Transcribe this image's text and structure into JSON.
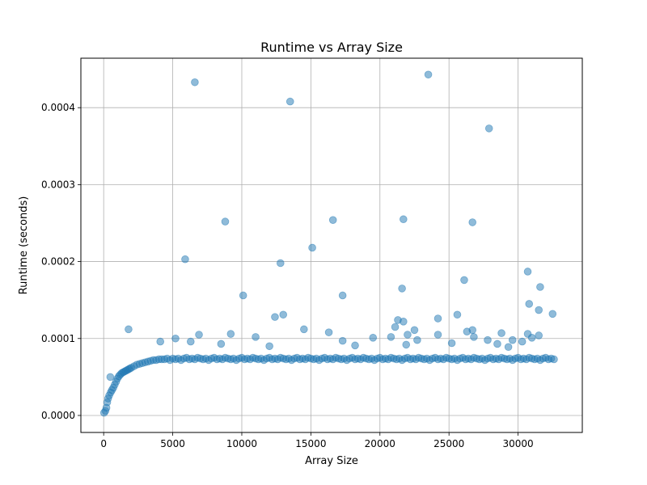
{
  "chart_data": {
    "type": "scatter",
    "title": "Runtime vs Array Size",
    "xlabel": "Array Size",
    "ylabel": "Runtime (seconds)",
    "xlim": [
      -1650,
      34650
    ],
    "ylim": [
      -2.21e-05,
      0.0004643
    ],
    "x_ticks": [
      0,
      5000,
      10000,
      15000,
      20000,
      25000,
      30000
    ],
    "x_tick_labels": [
      "0",
      "5000",
      "10000",
      "15000",
      "20000",
      "25000",
      "30000"
    ],
    "y_ticks": [
      0,
      0.0001,
      0.0002,
      0.0003,
      0.0004
    ],
    "y_tick_labels": [
      "0.0000",
      "0.0001",
      "0.0002",
      "0.0003",
      "0.0004"
    ],
    "grid": true,
    "legend": "none",
    "marker_color": "#1f77b4",
    "marker_alpha": 0.5,
    "series": [
      {
        "x": [
          32,
          128,
          200,
          256,
          320,
          400,
          480,
          512,
          600,
          700,
          800,
          900,
          1000,
          1100,
          1200,
          1300,
          1400,
          1500,
          1600,
          1700,
          1800,
          1900,
          2000,
          2200,
          2400,
          2600,
          2800,
          3000,
          3200,
          3400,
          3600,
          3800,
          4000,
          4200,
          4400,
          4600,
          4800,
          5000,
          5200,
          5400,
          5600,
          5800,
          6000,
          6200,
          6400,
          6600,
          6800,
          7000,
          7200,
          7400,
          7600,
          7800,
          8000,
          8200,
          8400,
          8600,
          8800,
          9000,
          9200,
          9400,
          9600,
          9800,
          10000,
          10200,
          10400,
          10600,
          10800,
          11000,
          11200,
          11400,
          11600,
          11800,
          12000,
          12200,
          12400,
          12600,
          12800,
          13000,
          13200,
          13400,
          13600,
          13800,
          14000,
          14200,
          14400,
          14600,
          14800,
          15000,
          15200,
          15400,
          15600,
          15800,
          16000,
          16200,
          16400,
          16600,
          16800,
          17000,
          17200,
          17400,
          17600,
          17800,
          18000,
          18200,
          18400,
          18600,
          18800,
          19000,
          19200,
          19400,
          19600,
          19800,
          20000,
          20200,
          20400,
          20600,
          20800,
          21000,
          21200,
          21400,
          21600,
          21800,
          22000,
          22200,
          22400,
          22600,
          22800,
          23000,
          23200,
          23400,
          23600,
          23800,
          24000,
          24200,
          24400,
          24600,
          24800,
          25000,
          25200,
          25400,
          25600,
          25800,
          26000,
          26200,
          26400,
          26600,
          26800,
          27000,
          27200,
          27400,
          27600,
          27800,
          28000,
          28200,
          28400,
          28600,
          28800,
          29000,
          29200,
          29400,
          29600,
          29800,
          30000,
          30200,
          30400,
          30600,
          30800,
          31000,
          31200,
          31400,
          31600,
          31800,
          32000,
          32200,
          32400,
          32600,
          6600,
          23500,
          13500,
          27900,
          8800,
          16600,
          21700,
          26700,
          5900,
          15100,
          12800,
          30700,
          26100,
          31600,
          21600,
          10100,
          17300,
          30800,
          31500,
          32500,
          12400,
          13000,
          25600,
          24200,
          1800,
          21100,
          21700,
          14500,
          26700,
          16300,
          4100,
          5200,
          6900,
          9200,
          11000,
          17300,
          19500,
          20800,
          21300,
          22000,
          22500,
          24200,
          25200,
          26300,
          27800,
          28500,
          28800,
          29600,
          30300,
          30700,
          31000,
          31500,
          6300,
          8500,
          12000,
          18200,
          21900,
          26800,
          29300,
          22700
        ],
        "y": [
          3.5e-06,
          6e-06,
          1e-05,
          1.7e-05,
          2.2e-05,
          2.6e-05,
          5e-05,
          3e-05,
          3.3e-05,
          3.6e-05,
          4e-05,
          4.4e-05,
          4.8e-05,
          5.1e-05,
          5.3e-05,
          5.5e-05,
          5.6e-05,
          5.7e-05,
          5.8e-05,
          5.9e-05,
          6e-05,
          6.1e-05,
          6.2e-05,
          6.4e-05,
          6.6e-05,
          6.7e-05,
          6.8e-05,
          6.9e-05,
          7e-05,
          7.1e-05,
          7.2e-05,
          7.2e-05,
          7.3e-05,
          7.3e-05,
          7.3e-05,
          7.4e-05,
          7.2e-05,
          7.4e-05,
          7.3e-05,
          7.4e-05,
          7.2e-05,
          7.4e-05,
          7.5e-05,
          7.3e-05,
          7.4e-05,
          7.3e-05,
          7.5e-05,
          7.4e-05,
          7.3e-05,
          7.4e-05,
          7.2e-05,
          7.4e-05,
          7.5e-05,
          7.3e-05,
          7.4e-05,
          7.3e-05,
          7.5e-05,
          7.4e-05,
          7.3e-05,
          7.4e-05,
          7.2e-05,
          7.4e-05,
          7.5e-05,
          7.3e-05,
          7.4e-05,
          7.3e-05,
          7.5e-05,
          7.4e-05,
          7.3e-05,
          7.4e-05,
          7.2e-05,
          7.4e-05,
          7.5e-05,
          7.3e-05,
          7.4e-05,
          7.3e-05,
          7.5e-05,
          7.4e-05,
          7.3e-05,
          7.4e-05,
          7.2e-05,
          7.4e-05,
          7.5e-05,
          7.3e-05,
          7.4e-05,
          7.3e-05,
          7.5e-05,
          7.4e-05,
          7.3e-05,
          7.4e-05,
          7.2e-05,
          7.4e-05,
          7.5e-05,
          7.3e-05,
          7.4e-05,
          7.3e-05,
          7.5e-05,
          7.4e-05,
          7.3e-05,
          7.4e-05,
          7.2e-05,
          7.4e-05,
          7.5e-05,
          7.3e-05,
          7.4e-05,
          7.3e-05,
          7.5e-05,
          7.4e-05,
          7.3e-05,
          7.4e-05,
          7.2e-05,
          7.4e-05,
          7.5e-05,
          7.3e-05,
          7.4e-05,
          7.3e-05,
          7.5e-05,
          7.4e-05,
          7.3e-05,
          7.4e-05,
          7.2e-05,
          7.4e-05,
          7.5e-05,
          7.3e-05,
          7.4e-05,
          7.3e-05,
          7.5e-05,
          7.4e-05,
          7.3e-05,
          7.4e-05,
          7.2e-05,
          7.4e-05,
          7.5e-05,
          7.3e-05,
          7.4e-05,
          7.3e-05,
          7.5e-05,
          7.4e-05,
          7.3e-05,
          7.4e-05,
          7.2e-05,
          7.4e-05,
          7.5e-05,
          7.3e-05,
          7.4e-05,
          7.3e-05,
          7.5e-05,
          7.4e-05,
          7.3e-05,
          7.4e-05,
          7.2e-05,
          7.4e-05,
          7.5e-05,
          7.3e-05,
          7.4e-05,
          7.3e-05,
          7.5e-05,
          7.4e-05,
          7.3e-05,
          7.4e-05,
          7.2e-05,
          7.4e-05,
          7.5e-05,
          7.3e-05,
          7.4e-05,
          7.3e-05,
          7.5e-05,
          7.4e-05,
          7.3e-05,
          7.4e-05,
          7.2e-05,
          7.4e-05,
          7.5e-05,
          7.3e-05,
          7.4e-05,
          7.3e-05,
          0.000433,
          0.000443,
          0.000408,
          0.000373,
          0.000252,
          0.000254,
          0.000255,
          0.000251,
          0.000203,
          0.000218,
          0.000198,
          0.000187,
          0.000176,
          0.000167,
          0.000165,
          0.000156,
          0.000156,
          0.000145,
          0.000137,
          0.000132,
          0.000128,
          0.000131,
          0.000131,
          0.000126,
          0.000112,
          0.000115,
          0.000122,
          0.000112,
          0.000111,
          0.000108,
          9.6e-05,
          0.0001,
          0.000105,
          0.000106,
          0.000102,
          9.7e-05,
          0.000101,
          0.000102,
          0.000124,
          0.000105,
          0.000111,
          0.000105,
          9.4e-05,
          0.000109,
          9.8e-05,
          9.3e-05,
          0.000107,
          9.8e-05,
          9.6e-05,
          0.000106,
          0.000101,
          0.000104,
          9.6e-05,
          9.3e-05,
          9e-05,
          9.1e-05,
          9.2e-05,
          0.000102,
          8.9e-05,
          9.8e-05
        ]
      }
    ]
  }
}
